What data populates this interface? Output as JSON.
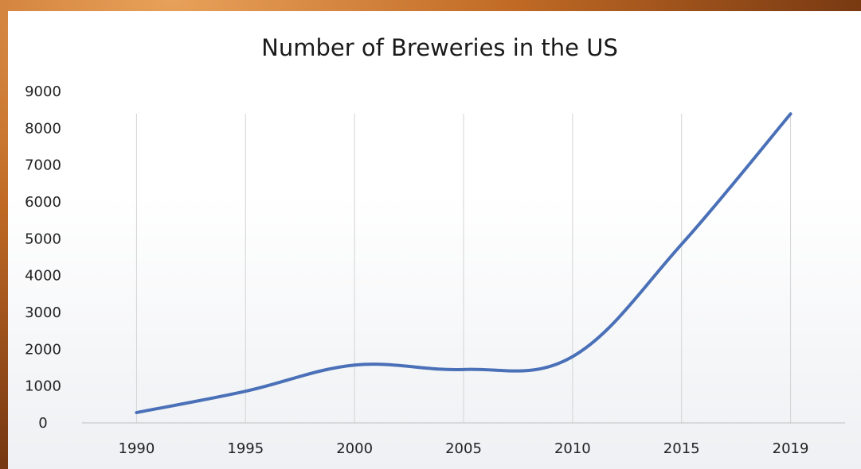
{
  "chart_data": {
    "type": "line",
    "title": "Number of Breweries in the US",
    "xlabel": "",
    "ylabel": "",
    "categories": [
      "1990",
      "1995",
      "2000",
      "2005",
      "2010",
      "2015",
      "2019"
    ],
    "series": [
      {
        "values": [
          280,
          860,
          1570,
          1450,
          1800,
          4850,
          8390
        ]
      }
    ],
    "ylim": [
      0,
      9000
    ],
    "yticks": [
      "0",
      "1000",
      "2000",
      "3000",
      "4000",
      "5000",
      "6000",
      "7000",
      "8000",
      "9000"
    ],
    "grid": "vertical",
    "legend": "none",
    "colors": {
      "line": "#4a70b8",
      "grid": "#d4d4d4",
      "axis": "#bfbfbf"
    }
  }
}
